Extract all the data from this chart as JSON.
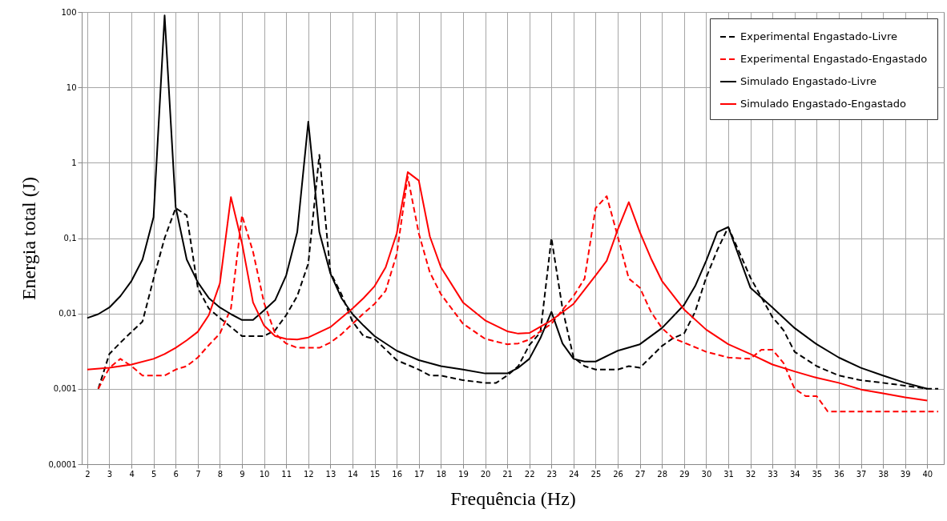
{
  "chart_data": {
    "type": "line",
    "xlabel": "Frequência (Hz)",
    "ylabel": "Energia total (J)",
    "log": true,
    "grid": true,
    "legend": "top right",
    "xlim": [
      1.75,
      40.75
    ],
    "xticks": [
      2,
      3,
      4,
      5,
      6,
      7,
      8,
      9,
      10,
      11,
      12,
      13,
      14,
      15,
      16,
      17,
      18,
      19,
      20,
      21,
      22,
      23,
      24,
      25,
      26,
      27,
      28,
      29,
      30,
      31,
      32,
      33,
      34,
      35,
      36,
      37,
      38,
      39,
      40
    ],
    "ylim": [
      0.0001,
      100
    ],
    "yticks": [
      {
        "value": 0.0001,
        "label": "0,0001"
      },
      {
        "value": 0.001,
        "label": "0,001"
      },
      {
        "value": 0.01,
        "label": "0,01"
      },
      {
        "value": 0.1,
        "label": "0,1"
      },
      1,
      10,
      100
    ],
    "series": [
      {
        "name": "Experimental Engastado-Livre",
        "color": "#000000",
        "line_style": "dashed",
        "x": [
          2.5,
          3,
          3.5,
          4,
          4.5,
          5,
          5.5,
          6,
          6.5,
          7,
          7.5,
          8,
          8.5,
          9,
          9.5,
          10,
          10.5,
          11,
          11.5,
          12,
          12.5,
          13,
          13.5,
          14,
          14.5,
          15,
          16,
          17,
          17.5,
          18,
          19,
          20,
          20.5,
          21,
          21.5,
          22,
          22.5,
          23,
          23.5,
          24,
          24.5,
          25,
          26,
          26.5,
          27,
          28,
          28.5,
          29,
          29.5,
          30,
          30.5,
          31,
          32,
          33,
          33.5,
          34,
          35,
          36,
          37,
          38,
          39,
          40,
          40.5
        ],
        "values": [
          0.001,
          0.0029,
          0.0041,
          0.0057,
          0.0078,
          0.029,
          0.1,
          0.25,
          0.2,
          0.022,
          0.0116,
          0.0087,
          0.0066,
          0.005,
          0.005,
          0.005,
          0.006,
          0.0095,
          0.017,
          0.046,
          1.27,
          0.035,
          0.018,
          0.0078,
          0.005,
          0.0046,
          0.0024,
          0.0018,
          0.0015,
          0.0015,
          0.0013,
          0.0012,
          0.0012,
          0.0015,
          0.002,
          0.0038,
          0.0056,
          0.1,
          0.0116,
          0.0026,
          0.002,
          0.0018,
          0.0018,
          0.002,
          0.0019,
          0.0037,
          0.0047,
          0.0054,
          0.0105,
          0.03,
          0.069,
          0.14,
          0.03,
          0.0089,
          0.006,
          0.0031,
          0.002,
          0.0015,
          0.0013,
          0.0012,
          0.0011,
          0.001,
          0.001
        ]
      },
      {
        "name": "Experimental Engastado-Engastado",
        "color": "#ff0000",
        "line_style": "dashed",
        "x": [
          2.5,
          3,
          3.5,
          4,
          4.5,
          5,
          5.5,
          6,
          6.5,
          7,
          7.5,
          8,
          8.5,
          9,
          9.5,
          10,
          10.5,
          11,
          11.5,
          12,
          12.5,
          13,
          13.5,
          14,
          14.5,
          15,
          15.5,
          16,
          16.5,
          17,
          17.5,
          18,
          19,
          19.5,
          20,
          21,
          21.5,
          22,
          22.5,
          23,
          24,
          24.5,
          25,
          25.5,
          26,
          26.5,
          27,
          27.5,
          28,
          28.5,
          29,
          30,
          31,
          32,
          32.5,
          33,
          33.5,
          34,
          34.5,
          35,
          35.5,
          36,
          37,
          38,
          39,
          40,
          40.5
        ],
        "values": [
          0.001,
          0.0019,
          0.0025,
          0.002,
          0.0015,
          0.0015,
          0.0015,
          0.0018,
          0.002,
          0.0026,
          0.0038,
          0.0054,
          0.0116,
          0.2,
          0.066,
          0.0138,
          0.0054,
          0.004,
          0.0035,
          0.0035,
          0.0035,
          0.0041,
          0.0053,
          0.0073,
          0.01,
          0.0134,
          0.02,
          0.061,
          0.65,
          0.115,
          0.035,
          0.018,
          0.0073,
          0.0058,
          0.0046,
          0.0039,
          0.004,
          0.0045,
          0.0058,
          0.0073,
          0.017,
          0.029,
          0.25,
          0.36,
          0.105,
          0.029,
          0.022,
          0.0105,
          0.0064,
          0.0047,
          0.0041,
          0.0031,
          0.0026,
          0.0025,
          0.0033,
          0.0033,
          0.0022,
          0.001,
          0.0008,
          0.0008,
          0.0005,
          0.0005,
          0.0005,
          0.0005,
          0.0005,
          0.0005,
          0.0005
        ]
      },
      {
        "name": "Simulado Engastado-Livre",
        "color": "#000000",
        "line_style": "solid",
        "x": [
          2,
          2.5,
          3,
          3.5,
          4,
          4.5,
          5,
          5.5,
          6,
          6.5,
          7,
          7.5,
          8,
          8.5,
          9,
          9.5,
          10,
          10.5,
          11,
          11.5,
          12,
          12.5,
          13,
          13.5,
          14,
          14.5,
          15,
          16,
          17,
          18,
          19,
          20,
          21,
          21.5,
          22,
          22.5,
          23,
          23.5,
          24,
          24.5,
          25,
          26,
          27,
          28,
          29,
          29.5,
          30,
          30.5,
          31,
          32,
          33,
          34,
          35,
          36,
          37,
          38,
          39,
          40
        ],
        "values": [
          0.0087,
          0.0098,
          0.012,
          0.017,
          0.027,
          0.052,
          0.19,
          90,
          0.26,
          0.052,
          0.026,
          0.016,
          0.012,
          0.0098,
          0.0082,
          0.0082,
          0.011,
          0.015,
          0.032,
          0.12,
          3.5,
          0.12,
          0.034,
          0.016,
          0.0098,
          0.0069,
          0.005,
          0.0032,
          0.0024,
          0.002,
          0.0018,
          0.0016,
          0.0016,
          0.0019,
          0.0025,
          0.0047,
          0.0105,
          0.004,
          0.0025,
          0.0023,
          0.0023,
          0.0032,
          0.0039,
          0.0064,
          0.013,
          0.023,
          0.05,
          0.12,
          0.14,
          0.022,
          0.012,
          0.0064,
          0.0039,
          0.0026,
          0.0019,
          0.0015,
          0.0012,
          0.001
        ]
      },
      {
        "name": "Simulado Engastado-Engastado",
        "color": "#ff0000",
        "line_style": "solid",
        "x": [
          2,
          3,
          4,
          5,
          5.5,
          6,
          6.5,
          7,
          7.5,
          8,
          8.5,
          9,
          9.5,
          10,
          10.5,
          11,
          11.5,
          12,
          13,
          14,
          14.5,
          15,
          15.5,
          16,
          16.5,
          17,
          17.5,
          18,
          19,
          20,
          21,
          21.5,
          22,
          23,
          24,
          25,
          25.5,
          26,
          26.5,
          27,
          27.5,
          28,
          29,
          30,
          31,
          32,
          33,
          34,
          35,
          36,
          37,
          38,
          39,
          40
        ],
        "values": [
          0.0018,
          0.0019,
          0.0021,
          0.0025,
          0.0029,
          0.0035,
          0.0044,
          0.0057,
          0.0095,
          0.025,
          0.35,
          0.086,
          0.014,
          0.0069,
          0.005,
          0.0046,
          0.0045,
          0.0048,
          0.0066,
          0.0116,
          0.016,
          0.023,
          0.041,
          0.115,
          0.75,
          0.58,
          0.105,
          0.041,
          0.014,
          0.0081,
          0.0058,
          0.0054,
          0.0055,
          0.0081,
          0.0134,
          0.032,
          0.05,
          0.13,
          0.3,
          0.12,
          0.054,
          0.027,
          0.0113,
          0.0061,
          0.0039,
          0.0029,
          0.0021,
          0.0017,
          0.0014,
          0.0012,
          0.00098,
          0.00087,
          0.00077,
          0.0007
        ]
      }
    ]
  }
}
